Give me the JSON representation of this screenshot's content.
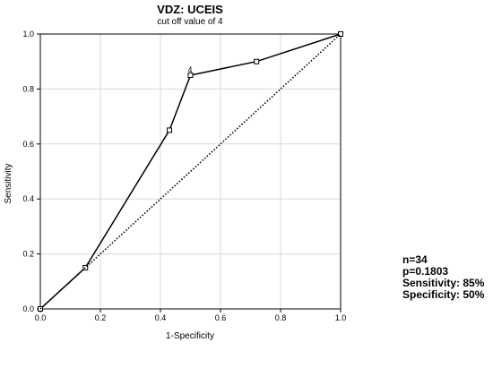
{
  "chart_data": {
    "type": "line",
    "title": "VDZ: UCEIS",
    "subtitle": "cut off value of 4",
    "xlabel": "1-Specificity",
    "ylabel": "Sensitivity",
    "xlim": [
      0.0,
      1.0
    ],
    "ylim": [
      0.0,
      1.0
    ],
    "xticks": [
      "0.0",
      "0.2",
      "0.4",
      "0.6",
      "0.8",
      "1.0"
    ],
    "yticks": [
      "0.0",
      "0.2",
      "0.4",
      "0.6",
      "0.8",
      "1.0"
    ],
    "grid": true,
    "series": [
      {
        "style": "solid",
        "marker": "square",
        "x": [
          0.0,
          0.15,
          0.43,
          0.5,
          0.72,
          1.0
        ],
        "y": [
          0.0,
          0.15,
          0.65,
          0.85,
          0.9,
          1.0
        ]
      },
      {
        "style": "dotted",
        "x": [
          0.0,
          1.0
        ],
        "y": [
          0.0,
          1.0
        ]
      }
    ],
    "annotations": [
      {
        "text": "4",
        "x": 0.5,
        "y": 0.85
      }
    ]
  },
  "stats": {
    "n": "n=34",
    "p": "p=0.1803",
    "sensitivity": "Sensitivity: 85%",
    "specificity": "Specificity: 50%"
  }
}
